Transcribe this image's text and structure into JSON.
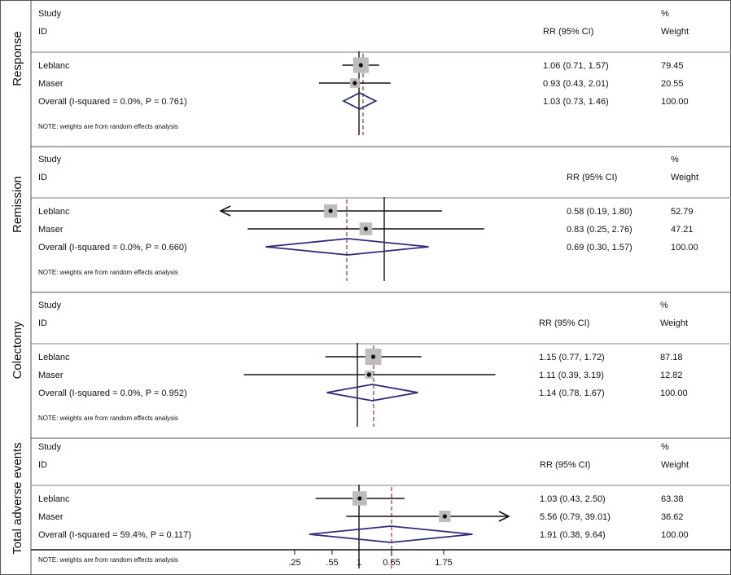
{
  "chart_data": {
    "type": "forest",
    "x_axis": {
      "ticks": [
        ".25",
        ".55",
        "1",
        "0.65",
        "1.75"
      ]
    },
    "panels": [
      {
        "outcome": "Response",
        "col_study": "Study",
        "col_id": "ID",
        "col_rr": "RR (95% CI)",
        "col_pct": "%",
        "col_weight": "Weight",
        "studies": [
          {
            "name": "Leblanc",
            "rr": 1.06,
            "lo": 0.71,
            "hi": 1.57,
            "rr_text": "1.06 (0.71, 1.57)",
            "weight": "79.45",
            "arrow": ""
          },
          {
            "name": "Maser",
            "rr": 0.93,
            "lo": 0.43,
            "hi": 2.01,
            "rr_text": "0.93 (0.43, 2.01)",
            "weight": "20.55",
            "arrow": ""
          }
        ],
        "overall": {
          "label": "Overall  (I-squared = 0.0%, P = 0.761)",
          "rr": 1.03,
          "lo": 0.73,
          "hi": 1.46,
          "rr_text": "1.03 (0.73, 1.46)",
          "weight": "100.00"
        },
        "note": "NOTE: weights are from random effects analysis"
      },
      {
        "outcome": "Remission",
        "col_study": "Study",
        "col_id": "ID",
        "col_rr": "RR (95% CI)",
        "col_pct": "%",
        "col_weight": "Weight",
        "studies": [
          {
            "name": "Leblanc",
            "rr": 0.58,
            "lo": 0.19,
            "hi": 1.8,
            "rr_text": "0.58 (0.19, 1.80)",
            "weight": "52.79",
            "arrow": "left"
          },
          {
            "name": "Maser",
            "rr": 0.83,
            "lo": 0.25,
            "hi": 2.76,
            "rr_text": "0.83 (0.25, 2.76)",
            "weight": "47.21",
            "arrow": ""
          }
        ],
        "overall": {
          "label": "Overall  (I-squared = 0.0%, P = 0.660)",
          "rr": 0.69,
          "lo": 0.3,
          "hi": 1.57,
          "rr_text": "0.69 (0.30, 1.57)",
          "weight": "100.00"
        },
        "note": "NOTE: weights are from random effects analysis"
      },
      {
        "outcome": "Colectomy",
        "col_study": "Study",
        "col_id": "ID",
        "col_rr": "RR (95% CI)",
        "col_pct": "%",
        "col_weight": "Weight",
        "studies": [
          {
            "name": "Leblanc",
            "rr": 1.15,
            "lo": 0.77,
            "hi": 1.72,
            "rr_text": "1.15 (0.77, 1.72)",
            "weight": "87.18",
            "arrow": ""
          },
          {
            "name": "Maser",
            "rr": 1.11,
            "lo": 0.39,
            "hi": 3.19,
            "rr_text": "1.11 (0.39, 3.19)",
            "weight": "12.82",
            "arrow": ""
          }
        ],
        "overall": {
          "label": "Overall  (I-squared = 0.0%, P = 0.952)",
          "rr": 1.14,
          "lo": 0.78,
          "hi": 1.67,
          "rr_text": "1.14 (0.78, 1.67)",
          "weight": "100.00"
        },
        "note": "NOTE: weights are from random effects analysis"
      },
      {
        "outcome": "Total adverse events",
        "col_study": "Study",
        "col_id": "ID",
        "col_rr": "RR (95% CI)",
        "col_pct": "%",
        "col_weight": "Weight",
        "studies": [
          {
            "name": "Leblanc",
            "rr": 1.03,
            "lo": 0.43,
            "hi": 2.5,
            "rr_text": "1.03 (0.43, 2.50)",
            "weight": "63.38",
            "arrow": ""
          },
          {
            "name": "Maser",
            "rr": 5.56,
            "lo": 0.79,
            "hi": 39.01,
            "rr_text": "5.56 (0.79, 39.01)",
            "weight": "36.62",
            "arrow": "right"
          }
        ],
        "overall": {
          "label": "Overall  (I-squared = 59.4%, P = 0.117)",
          "rr": 1.91,
          "lo": 0.38,
          "hi": 9.64,
          "rr_text": "1.91 (0.38, 9.64)",
          "weight": "100.00"
        },
        "note": "NOTE: weights are from random effects analysis"
      }
    ]
  }
}
